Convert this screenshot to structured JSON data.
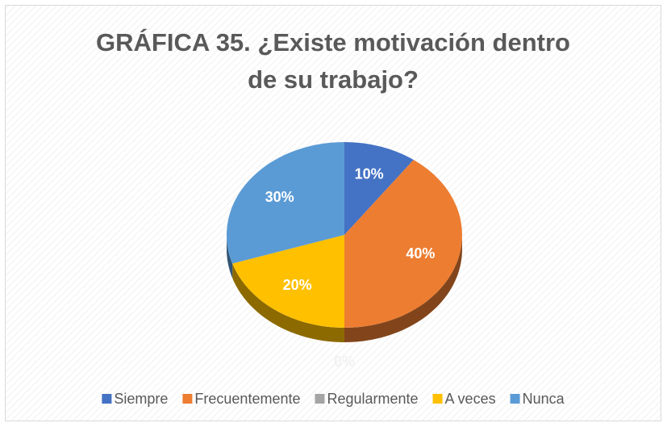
{
  "chart_data": {
    "type": "pie",
    "title": "GRÁFICA 35. ¿Existe motivación dentro de su trabajo?",
    "categories": [
      "Siempre",
      "Frecuentemente",
      "Regularmente",
      "A veces",
      "Nunca"
    ],
    "values": [
      10,
      40,
      0,
      20,
      30
    ],
    "value_labels": [
      "10%",
      "40%",
      "0%",
      "20%",
      "30%"
    ],
    "colors": [
      "#4472c4",
      "#ed7d31",
      "#a5a5a5",
      "#ffc000",
      "#5b9bd5"
    ],
    "legend": "bottom"
  }
}
